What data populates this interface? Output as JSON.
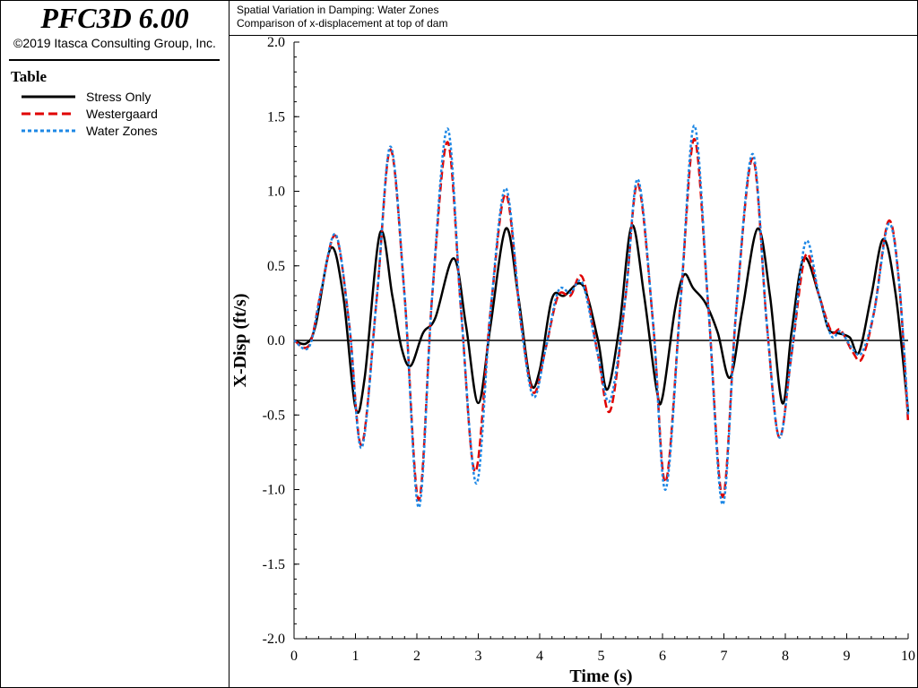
{
  "app": {
    "title": "PFC3D 6.00",
    "copyright": "©2019 Itasca Consulting Group, Inc."
  },
  "legend": {
    "title": "Table",
    "items": [
      {
        "label": "Stress Only",
        "color": "#000000",
        "dash": "solid"
      },
      {
        "label": "Westergaard",
        "color": "#e00000",
        "dash": "dashed"
      },
      {
        "label": "Water Zones",
        "color": "#1e88e5",
        "dash": "dotted"
      }
    ]
  },
  "chart_data": {
    "type": "line",
    "title": "Spatial Variation in Damping: Water Zones",
    "subtitle": "Comparison of x-displacement at top of dam",
    "xlabel": "Time (s)",
    "ylabel": "X-Disp (ft/s)",
    "xlim": [
      0,
      10
    ],
    "ylim": [
      -2.0,
      2.0
    ],
    "x_ticks": [
      "0",
      "1",
      "2",
      "3",
      "4",
      "5",
      "6",
      "7",
      "8",
      "9",
      "10"
    ],
    "y_ticks": [
      "2.0",
      "1.5",
      "1.0",
      "0.5",
      "0.0",
      "-0.5",
      "-1.0",
      "-1.5",
      "-2.0"
    ],
    "grid": false,
    "legend_position": "left-panel",
    "series": [
      {
        "name": "Stress Only",
        "color": "#000000",
        "points": [
          [
            0,
            0
          ],
          [
            0.2,
            -0.02
          ],
          [
            0.35,
            0.1
          ],
          [
            0.6,
            0.62
          ],
          [
            0.8,
            0.3
          ],
          [
            1.0,
            -0.45
          ],
          [
            1.15,
            -0.25
          ],
          [
            1.4,
            0.72
          ],
          [
            1.6,
            0.3
          ],
          [
            1.75,
            -0.05
          ],
          [
            1.9,
            -0.17
          ],
          [
            2.1,
            0.05
          ],
          [
            2.3,
            0.15
          ],
          [
            2.6,
            0.55
          ],
          [
            2.8,
            0.1
          ],
          [
            3.0,
            -0.42
          ],
          [
            3.2,
            0.1
          ],
          [
            3.45,
            0.75
          ],
          [
            3.65,
            0.3
          ],
          [
            3.85,
            -0.28
          ],
          [
            4.0,
            -0.2
          ],
          [
            4.2,
            0.28
          ],
          [
            4.4,
            0.3
          ],
          [
            4.7,
            0.37
          ],
          [
            4.95,
            0.0
          ],
          [
            5.1,
            -0.33
          ],
          [
            5.3,
            0.1
          ],
          [
            5.5,
            0.77
          ],
          [
            5.7,
            0.3
          ],
          [
            5.9,
            -0.32
          ],
          [
            6.0,
            -0.38
          ],
          [
            6.2,
            0.2
          ],
          [
            6.35,
            0.44
          ],
          [
            6.5,
            0.35
          ],
          [
            6.7,
            0.25
          ],
          [
            6.9,
            0.05
          ],
          [
            7.1,
            -0.25
          ],
          [
            7.3,
            0.2
          ],
          [
            7.55,
            0.75
          ],
          [
            7.75,
            0.3
          ],
          [
            7.95,
            -0.42
          ],
          [
            8.1,
            0.05
          ],
          [
            8.3,
            0.55
          ],
          [
            8.55,
            0.3
          ],
          [
            8.7,
            0.08
          ],
          [
            8.85,
            0.05
          ],
          [
            9.05,
            0.02
          ],
          [
            9.2,
            -0.08
          ],
          [
            9.4,
            0.3
          ],
          [
            9.6,
            0.68
          ],
          [
            9.8,
            0.3
          ],
          [
            10,
            -0.48
          ]
        ]
      },
      {
        "name": "Westergaard",
        "color": "#e00000",
        "points": [
          [
            0,
            0
          ],
          [
            0.25,
            -0.03
          ],
          [
            0.45,
            0.35
          ],
          [
            0.68,
            0.7
          ],
          [
            0.9,
            0.1
          ],
          [
            1.1,
            -0.7
          ],
          [
            1.35,
            0.3
          ],
          [
            1.57,
            1.28
          ],
          [
            1.8,
            0.3
          ],
          [
            2.03,
            -1.07
          ],
          [
            2.25,
            0.3
          ],
          [
            2.5,
            1.33
          ],
          [
            2.72,
            0.2
          ],
          [
            2.95,
            -0.88
          ],
          [
            3.2,
            0.2
          ],
          [
            3.45,
            0.98
          ],
          [
            3.7,
            0.1
          ],
          [
            3.9,
            -0.35
          ],
          [
            4.1,
            -0.05
          ],
          [
            4.3,
            0.3
          ],
          [
            4.5,
            0.3
          ],
          [
            4.7,
            0.42
          ],
          [
            4.95,
            -0.1
          ],
          [
            5.15,
            -0.47
          ],
          [
            5.4,
            0.3
          ],
          [
            5.6,
            1.05
          ],
          [
            5.85,
            0.1
          ],
          [
            6.05,
            -0.95
          ],
          [
            6.3,
            0.3
          ],
          [
            6.52,
            1.35
          ],
          [
            6.75,
            0.2
          ],
          [
            6.98,
            -1.05
          ],
          [
            7.2,
            0.2
          ],
          [
            7.47,
            1.22
          ],
          [
            7.7,
            0.1
          ],
          [
            7.9,
            -0.65
          ],
          [
            8.1,
            -0.1
          ],
          [
            8.33,
            0.57
          ],
          [
            8.55,
            0.3
          ],
          [
            8.75,
            0.06
          ],
          [
            8.9,
            0.07
          ],
          [
            9.1,
            -0.08
          ],
          [
            9.25,
            -0.12
          ],
          [
            9.45,
            0.2
          ],
          [
            9.68,
            0.8
          ],
          [
            9.85,
            0.4
          ],
          [
            10,
            -0.55
          ]
        ]
      },
      {
        "name": "Water Zones",
        "color": "#1e88e5",
        "points": [
          [
            0,
            0
          ],
          [
            0.25,
            -0.04
          ],
          [
            0.45,
            0.35
          ],
          [
            0.68,
            0.71
          ],
          [
            0.9,
            0.1
          ],
          [
            1.1,
            -0.72
          ],
          [
            1.35,
            0.3
          ],
          [
            1.57,
            1.3
          ],
          [
            1.8,
            0.3
          ],
          [
            2.03,
            -1.12
          ],
          [
            2.25,
            0.3
          ],
          [
            2.5,
            1.42
          ],
          [
            2.72,
            0.2
          ],
          [
            2.97,
            -0.96
          ],
          [
            3.2,
            0.2
          ],
          [
            3.45,
            1.02
          ],
          [
            3.7,
            0.1
          ],
          [
            3.9,
            -0.38
          ],
          [
            4.1,
            -0.05
          ],
          [
            4.3,
            0.33
          ],
          [
            4.5,
            0.32
          ],
          [
            4.7,
            0.38
          ],
          [
            4.95,
            -0.1
          ],
          [
            5.15,
            -0.4
          ],
          [
            5.4,
            0.3
          ],
          [
            5.6,
            1.08
          ],
          [
            5.85,
            0.1
          ],
          [
            6.05,
            -1.0
          ],
          [
            6.3,
            0.3
          ],
          [
            6.52,
            1.44
          ],
          [
            6.75,
            0.2
          ],
          [
            6.98,
            -1.1
          ],
          [
            7.2,
            0.2
          ],
          [
            7.47,
            1.25
          ],
          [
            7.7,
            0.1
          ],
          [
            7.9,
            -0.65
          ],
          [
            8.1,
            -0.1
          ],
          [
            8.33,
            0.66
          ],
          [
            8.55,
            0.3
          ],
          [
            8.75,
            0.03
          ],
          [
            8.9,
            0.06
          ],
          [
            9.1,
            -0.06
          ],
          [
            9.25,
            -0.08
          ],
          [
            9.45,
            0.2
          ],
          [
            9.68,
            0.78
          ],
          [
            9.85,
            0.4
          ],
          [
            10,
            -0.5
          ]
        ]
      }
    ]
  }
}
